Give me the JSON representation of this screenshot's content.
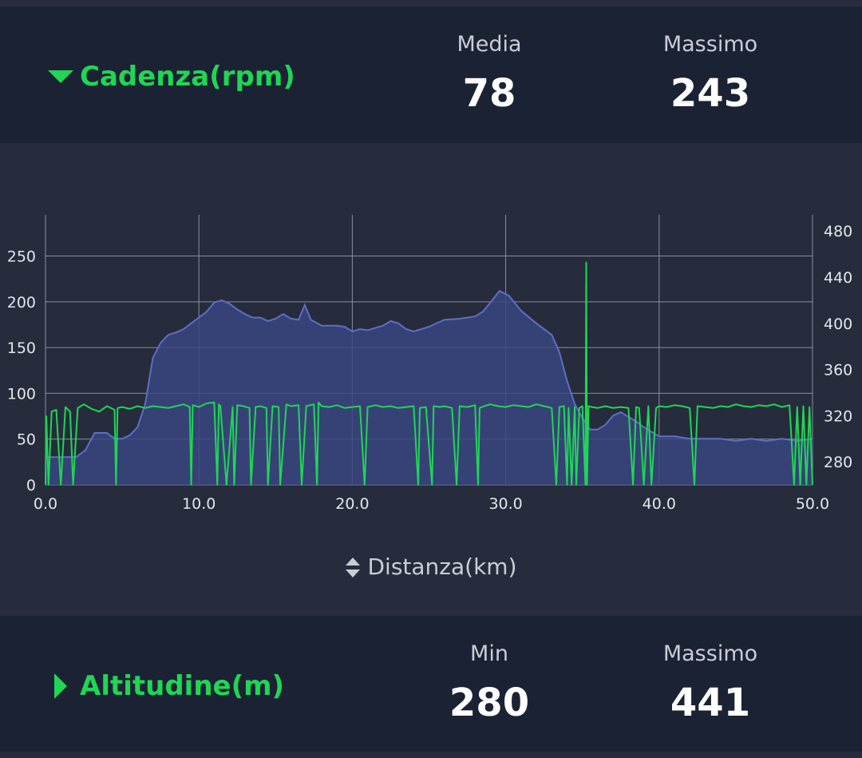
{
  "cadence": {
    "title": "Cadenza(rpm)",
    "icon": "triangle-down-icon",
    "stat1_label": "Media",
    "stat1_value": "78",
    "stat2_label": "Massimo",
    "stat2_value": "243"
  },
  "altitude": {
    "title": "Altitudine(m)",
    "icon": "triangle-right-icon",
    "stat1_label": "Min",
    "stat1_value": "280",
    "stat2_label": "Massimo",
    "stat2_value": "441"
  },
  "colors": {
    "accent": "#1fd655",
    "altitude_line": "#5d6fc4",
    "altitude_fill": "#3a4780",
    "grid": "#8a8f9c"
  },
  "chart_data": {
    "type": "line",
    "xlabel": "Distanza(km)",
    "xlim": [
      0,
      50
    ],
    "x_ticks": [
      "0.0",
      "10.0",
      "20.0",
      "30.0",
      "40.0",
      "50.0"
    ],
    "x_tick_values": [
      0,
      10,
      20,
      30,
      40,
      50
    ],
    "ylim": [
      0,
      295
    ],
    "y_ticks": [
      "0",
      "50",
      "100",
      "150",
      "200",
      "250"
    ],
    "y_tick_values": [
      0,
      50,
      100,
      150,
      200,
      250
    ],
    "y2lim": [
      260,
      494
    ],
    "y2_ticks": [
      "280",
      "320",
      "360",
      "400",
      "440",
      "480"
    ],
    "y2_tick_values": [
      280,
      320,
      360,
      400,
      440,
      480
    ],
    "grid": true,
    "series": [
      {
        "axis": "right",
        "kind": "area",
        "x": [
          0,
          1,
          2,
          2.6,
          3.2,
          4,
          4.5,
          5,
          5.5,
          6,
          6.5,
          7,
          7.5,
          8,
          8.5,
          9,
          10,
          10.5,
          11,
          11.5,
          12,
          12.5,
          13,
          13.5,
          14,
          14.5,
          15,
          15.5,
          16,
          16.5,
          16.9,
          17.3,
          18,
          19,
          19.5,
          20,
          20.5,
          21,
          22,
          22.5,
          23,
          23.5,
          24,
          24.5,
          25,
          26,
          27,
          28,
          28.5,
          29,
          29.6,
          30.2,
          31,
          32,
          33,
          33.5,
          34,
          34.5,
          35,
          35.5,
          36,
          36.5,
          37,
          37.5,
          38,
          38.5,
          39,
          40,
          41,
          42,
          43,
          44,
          45,
          46,
          47,
          48,
          49,
          50
        ],
        "y": [
          284,
          284,
          284,
          290,
          305,
          305,
          300,
          300,
          303,
          310,
          330,
          370,
          383,
          390,
          392,
          395,
          405,
          410,
          418,
          420,
          417,
          412,
          408,
          405,
          405,
          402,
          404,
          408,
          404,
          403,
          416,
          403,
          398,
          398,
          397,
          393,
          395,
          394,
          398,
          402,
          400,
          395,
          393,
          395,
          397,
          403,
          404,
          406,
          410,
          418,
          428,
          424,
          411,
          400,
          390,
          375,
          350,
          330,
          318,
          308,
          308,
          312,
          320,
          323,
          319,
          315,
          310,
          302,
          302,
          300,
          300,
          300,
          298,
          300,
          298,
          300,
          298,
          300
        ],
        "style": "altitude"
      },
      {
        "axis": "left",
        "kind": "line",
        "x": [
          0,
          0.05,
          0.2,
          0.4,
          0.7,
          1,
          1.3,
          1.6,
          1.8,
          2.1,
          2.5,
          3,
          3.5,
          4,
          4.5,
          4.6,
          4.7,
          5,
          5.5,
          6,
          6.5,
          7,
          7.5,
          8,
          8.5,
          9,
          9.4,
          9.5,
          9.6,
          10,
          10.5,
          11,
          11.2,
          11.3,
          11.4,
          11.8,
          12.2,
          12.3,
          12.5,
          12.9,
          13.3,
          13.4,
          13.7,
          14,
          14.4,
          14.5,
          14.8,
          15.2,
          15.3,
          15.7,
          16,
          16.5,
          16.7,
          17,
          17.5,
          17.7,
          17.8,
          18,
          18.5,
          19,
          19.5,
          20,
          20.5,
          20.8,
          21,
          21.5,
          22,
          22.5,
          23,
          23.5,
          24,
          24.3,
          24.4,
          24.8,
          25.2,
          25.3,
          25.7,
          26,
          26.5,
          26.8,
          27,
          27.5,
          28,
          28.2,
          28.3,
          28.6,
          29,
          29.5,
          30,
          30.5,
          31,
          31.5,
          32,
          32.5,
          33,
          33.3,
          33.5,
          33.8,
          34,
          34.1,
          34.3,
          34.5,
          34.6,
          34.8,
          35,
          35.2,
          35.25,
          35.3,
          35.4,
          35.6,
          36,
          36.5,
          37,
          37.5,
          38,
          38.3,
          38.5,
          38.7,
          39,
          39.3,
          39.5,
          39.8,
          40,
          40.5,
          41,
          41.5,
          42,
          42.3,
          42.5,
          43,
          43.5,
          44,
          44.5,
          45,
          45.5,
          46,
          46.5,
          47,
          47.5,
          48,
          48.5,
          48.8,
          49,
          49.2,
          49.4,
          49.6,
          49.8,
          50
        ],
        "y": [
          0,
          75,
          0,
          80,
          82,
          0,
          85,
          80,
          0,
          84,
          88,
          83,
          80,
          86,
          82,
          0,
          84,
          85,
          83,
          86,
          84,
          86,
          85,
          84,
          86,
          88,
          85,
          0,
          87,
          85,
          89,
          90,
          0,
          88,
          86,
          0,
          85,
          0,
          87,
          86,
          84,
          0,
          85,
          86,
          84,
          0,
          86,
          85,
          0,
          88,
          86,
          87,
          0,
          86,
          88,
          0,
          90,
          86,
          85,
          87,
          84,
          85,
          86,
          0,
          85,
          87,
          85,
          86,
          84,
          85,
          86,
          0,
          84,
          85,
          0,
          86,
          85,
          86,
          84,
          0,
          86,
          85,
          87,
          0,
          84,
          86,
          88,
          86,
          85,
          87,
          86,
          85,
          88,
          86,
          84,
          0,
          85,
          86,
          0,
          84,
          0,
          85,
          0,
          84,
          86,
          0,
          243,
          0,
          86,
          85,
          84,
          86,
          84,
          85,
          84,
          0,
          85,
          84,
          0,
          86,
          0,
          84,
          86,
          85,
          87,
          86,
          84,
          0,
          86,
          85,
          84,
          86,
          85,
          88,
          86,
          85,
          87,
          86,
          88,
          85,
          87,
          0,
          85,
          0,
          86,
          0,
          85,
          0
        ],
        "style": "cadence"
      }
    ]
  }
}
